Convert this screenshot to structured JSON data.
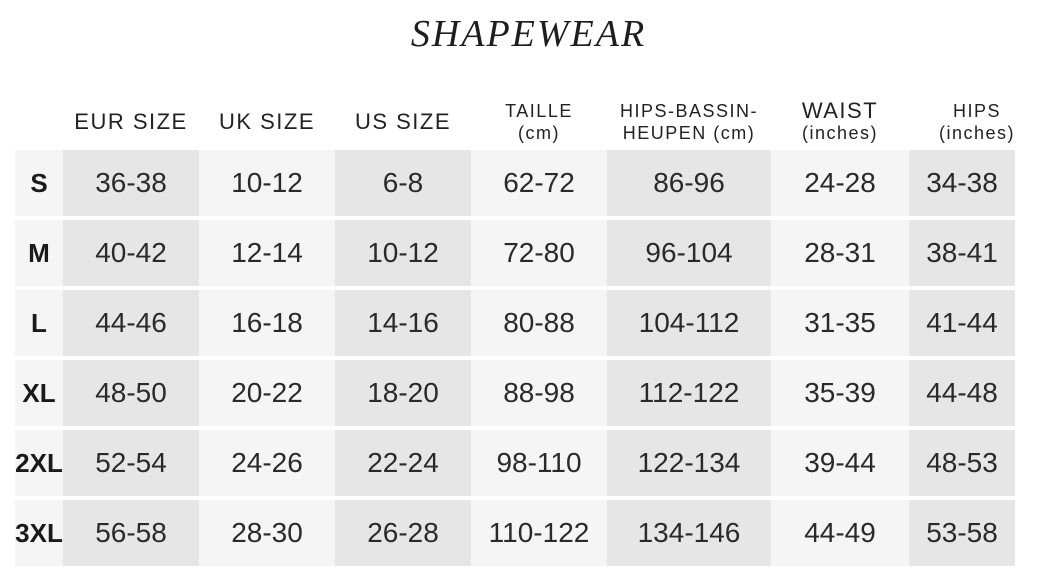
{
  "title": "SHAPEWEAR",
  "headers": [
    {
      "line1": "EUR SIZE",
      "line2": ""
    },
    {
      "line1": "UK SIZE",
      "line2": ""
    },
    {
      "line1": "US SIZE",
      "line2": ""
    },
    {
      "line1": "TAILLE",
      "line2": "(cm)"
    },
    {
      "line1": "HIPS-BASSIN-",
      "line2": "HEUPEN (cm)"
    },
    {
      "line1": "WAIST",
      "line2": "(inches)"
    },
    {
      "line1": "HIPS",
      "line2": "(inches)"
    }
  ],
  "rows": [
    {
      "size": "S",
      "values": [
        "36-38",
        "10-12",
        "6-8",
        "62-72",
        "86-96",
        "24-28",
        "34-38"
      ]
    },
    {
      "size": "M",
      "values": [
        "40-42",
        "12-14",
        "10-12",
        "72-80",
        "96-104",
        "28-31",
        "38-41"
      ]
    },
    {
      "size": "L",
      "values": [
        "44-46",
        "16-18",
        "14-16",
        "80-88",
        "104-112",
        "31-35",
        "41-44"
      ]
    },
    {
      "size": "XL",
      "values": [
        "48-50",
        "20-22",
        "18-20",
        "88-98",
        "112-122",
        "35-39",
        "44-48"
      ]
    },
    {
      "size": "2XL",
      "values": [
        "52-54",
        "24-26",
        "22-24",
        "98-110",
        "122-134",
        "39-44",
        "48-53"
      ]
    },
    {
      "size": "3XL",
      "values": [
        "56-58",
        "28-30",
        "26-28",
        "110-122",
        "134-146",
        "44-49",
        "53-58"
      ]
    }
  ],
  "colors": {
    "shaded_column": "#e6e6e6",
    "light_column": "#f5f5f5",
    "text": "#222222"
  }
}
